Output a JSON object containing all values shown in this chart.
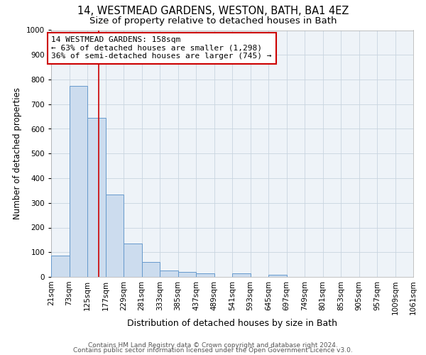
{
  "title1": "14, WESTMEAD GARDENS, WESTON, BATH, BA1 4EZ",
  "title2": "Size of property relative to detached houses in Bath",
  "xlabel": "Distribution of detached houses by size in Bath",
  "ylabel": "Number of detached properties",
  "bin_edges": [
    21,
    73,
    125,
    177,
    229,
    281,
    333,
    385,
    437,
    489,
    541,
    593,
    645,
    697,
    749,
    801,
    853,
    905,
    957,
    1009,
    1061
  ],
  "bar_heights": [
    85,
    775,
    645,
    335,
    135,
    60,
    25,
    20,
    15,
    0,
    15,
    0,
    10,
    0,
    0,
    0,
    0,
    0,
    0,
    0
  ],
  "bar_color": "#ccdcee",
  "bar_edge_color": "#6699cc",
  "bar_edge_width": 0.7,
  "grid_color": "#c8d4e0",
  "background_color": "#eef3f8",
  "red_line_x": 158,
  "annotation_text": "14 WESTMEAD GARDENS: 158sqm\n← 63% of detached houses are smaller (1,298)\n36% of semi-detached houses are larger (745) →",
  "annotation_box_color": "#ffffff",
  "annotation_border_color": "#cc0000",
  "ylim": [
    0,
    1000
  ],
  "yticks": [
    0,
    100,
    200,
    300,
    400,
    500,
    600,
    700,
    800,
    900,
    1000
  ],
  "footer1": "Contains HM Land Registry data © Crown copyright and database right 2024.",
  "footer2": "Contains public sector information licensed under the Open Government Licence v3.0.",
  "title1_fontsize": 10.5,
  "title2_fontsize": 9.5,
  "xlabel_fontsize": 9,
  "ylabel_fontsize": 8.5,
  "tick_fontsize": 7.5,
  "annotation_fontsize": 8,
  "footer_fontsize": 6.5
}
